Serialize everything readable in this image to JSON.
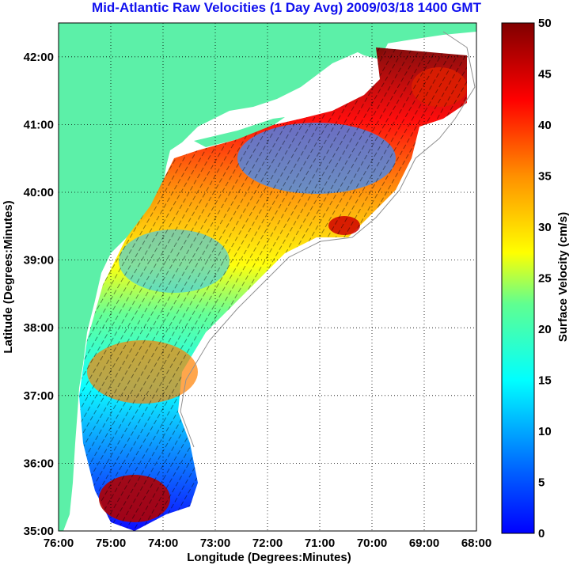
{
  "title": "Mid-Atlantic Raw Velocities (1 Day Avg) 2009/03/18 1400 GMT",
  "map": {
    "xlabel": "Longitude (Degrees:Minutes)",
    "ylabel": "Latitude (Degrees:Minutes)",
    "x_ticks": [
      "76:00",
      "75:00",
      "74:00",
      "73:00",
      "72:00",
      "71:00",
      "70:00",
      "69:00",
      "68:00"
    ],
    "y_ticks": [
      "42:00",
      "41:00",
      "40:00",
      "39:00",
      "38:00",
      "37:00",
      "36:00",
      "35:00"
    ],
    "lon_range": [
      -76,
      -68
    ],
    "lat_range": [
      35,
      42.5
    ],
    "land_color": "#5cf0a8",
    "grid": "dotted"
  },
  "colorbar": {
    "label": "Surface Velocity (cm/s)",
    "ticks": [
      "50",
      "45",
      "40",
      "35",
      "30",
      "25",
      "20",
      "15",
      "10",
      "5",
      "0"
    ],
    "range": [
      0,
      50
    ],
    "colormap": "jet"
  }
}
